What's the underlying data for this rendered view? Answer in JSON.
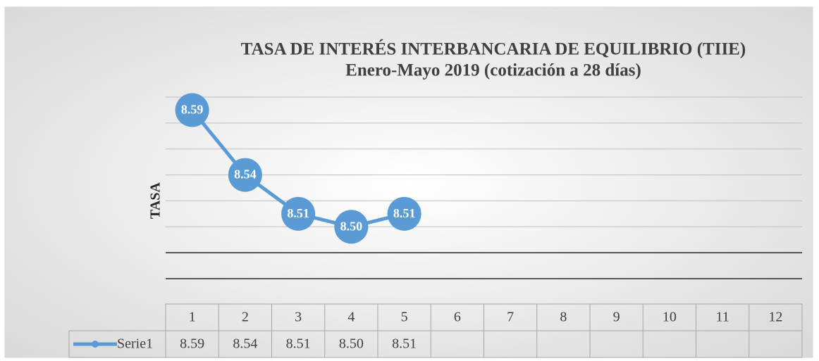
{
  "chart_data": {
    "type": "line",
    "title": "TASA DE INTERÉS INTERBANCARIA DE EQUILIBRIO (TIIE)",
    "subtitle": "Enero-Mayo 2019 (cotización a 28 días)",
    "y_label": "TASA",
    "categories": [
      "1",
      "2",
      "3",
      "4",
      "5",
      "6",
      "7",
      "8",
      "9",
      "10",
      "11",
      "12"
    ],
    "series": [
      {
        "name": "Serie1",
        "color": "#5b9bd5",
        "values": [
          8.59,
          8.54,
          8.51,
          8.5,
          8.51,
          null,
          null,
          null,
          null,
          null,
          null,
          null
        ],
        "value_labels": [
          "8.59",
          "8.54",
          "8.51",
          "8.50",
          "8.51",
          null,
          null,
          null,
          null,
          null,
          null,
          null
        ]
      }
    ],
    "ylim": [
      8.46,
      8.6
    ],
    "yticks": [
      8.46,
      8.48,
      8.5,
      8.52,
      8.54,
      8.56,
      8.58,
      8.6
    ],
    "grid": true,
    "data_table": true
  }
}
